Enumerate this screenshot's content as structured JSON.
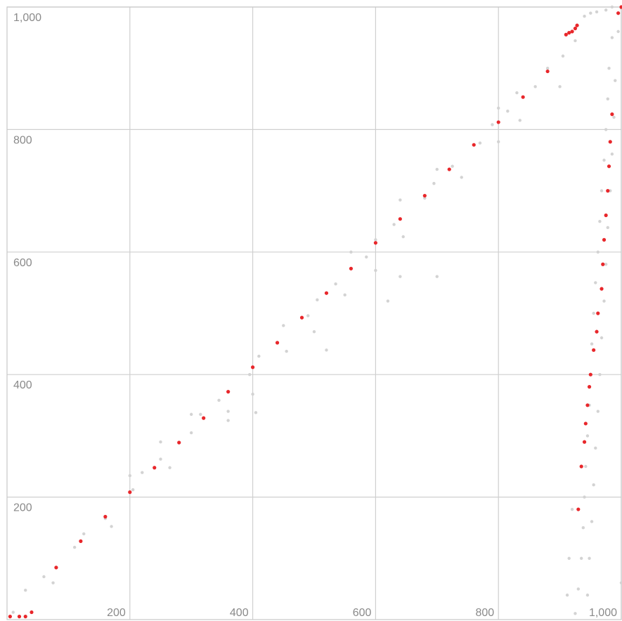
{
  "chart_data": {
    "type": "scatter",
    "title": "",
    "xlabel": "",
    "ylabel": "",
    "xlim": [
      0,
      1000
    ],
    "ylim": [
      0,
      1000
    ],
    "grid": true,
    "x_ticks": [
      {
        "value": 200,
        "label": "200"
      },
      {
        "value": 400,
        "label": "400"
      },
      {
        "value": 600,
        "label": "600"
      },
      {
        "value": 800,
        "label": "800"
      },
      {
        "value": 1000,
        "label": "1,000"
      }
    ],
    "y_ticks": [
      {
        "value": 200,
        "label": "200"
      },
      {
        "value": 400,
        "label": "400"
      },
      {
        "value": 600,
        "label": "600"
      },
      {
        "value": 800,
        "label": "800"
      },
      {
        "value": 1000,
        "label": "1,000"
      }
    ],
    "series": [
      {
        "color": "#d3d3d3",
        "values": [
          [
            10,
            12
          ],
          [
            60,
            70
          ],
          [
            110,
            118
          ],
          [
            160,
            165
          ],
          [
            205,
            212
          ],
          [
            250,
            262
          ],
          [
            300,
            305
          ],
          [
            345,
            358
          ],
          [
            395,
            400
          ],
          [
            440,
            452
          ],
          [
            490,
            496
          ],
          [
            535,
            548
          ],
          [
            585,
            592
          ],
          [
            630,
            645
          ],
          [
            680,
            688
          ],
          [
            725,
            740
          ],
          [
            770,
            778
          ],
          [
            815,
            830
          ],
          [
            860,
            870
          ],
          [
            905,
            920
          ],
          [
            30,
            48
          ],
          [
            75,
            60
          ],
          [
            125,
            140
          ],
          [
            170,
            152
          ],
          [
            220,
            240
          ],
          [
            265,
            248
          ],
          [
            315,
            335
          ],
          [
            360,
            340
          ],
          [
            410,
            430
          ],
          [
            455,
            438
          ],
          [
            505,
            522
          ],
          [
            550,
            530
          ],
          [
            600,
            620
          ],
          [
            645,
            625
          ],
          [
            695,
            712
          ],
          [
            740,
            722
          ],
          [
            790,
            808
          ],
          [
            835,
            815
          ],
          [
            880,
            900
          ],
          [
            925,
            945
          ],
          [
            200,
            235
          ],
          [
            300,
            335
          ],
          [
            400,
            368
          ],
          [
            500,
            470
          ],
          [
            600,
            570
          ],
          [
            700,
            735
          ],
          [
            800,
            835
          ],
          [
            900,
            870
          ],
          [
            360,
            325
          ],
          [
            560,
            600
          ],
          [
            640,
            560
          ],
          [
            620,
            520
          ],
          [
            700,
            560
          ],
          [
            520,
            440
          ],
          [
            405,
            338
          ],
          [
            640,
            685
          ],
          [
            800,
            780
          ],
          [
            830,
            860
          ],
          [
            450,
            480
          ],
          [
            250,
            290
          ],
          [
            940,
            985
          ],
          [
            960,
            992
          ],
          [
            975,
            995
          ],
          [
            950,
            990
          ],
          [
            1000,
            998
          ],
          [
            985,
            1000
          ],
          [
            985,
            950
          ],
          [
            980,
            900
          ],
          [
            978,
            850
          ],
          [
            975,
            800
          ],
          [
            972,
            750
          ],
          [
            968,
            700
          ],
          [
            965,
            650
          ],
          [
            962,
            600
          ],
          [
            958,
            550
          ],
          [
            955,
            500
          ],
          [
            952,
            450
          ],
          [
            950,
            400
          ],
          [
            948,
            350
          ],
          [
            945,
            300
          ],
          [
            942,
            250
          ],
          [
            940,
            200
          ],
          [
            938,
            150
          ],
          [
            935,
            100
          ],
          [
            930,
            50
          ],
          [
            925,
            10
          ],
          [
            995,
            960
          ],
          [
            990,
            880
          ],
          [
            988,
            820
          ],
          [
            985,
            760
          ],
          [
            982,
            700
          ],
          [
            978,
            640
          ],
          [
            975,
            580
          ],
          [
            972,
            520
          ],
          [
            968,
            460
          ],
          [
            965,
            400
          ],
          [
            962,
            340
          ],
          [
            958,
            280
          ],
          [
            955,
            220
          ],
          [
            952,
            160
          ],
          [
            948,
            100
          ],
          [
            945,
            40
          ],
          [
            920,
            180
          ],
          [
            915,
            100
          ],
          [
            912,
            40
          ],
          [
            1000,
            60
          ]
        ]
      },
      {
        "color": "#e8272b",
        "values": [
          [
            5,
            5
          ],
          [
            20,
            5
          ],
          [
            30,
            5
          ],
          [
            40,
            12
          ],
          [
            80,
            85
          ],
          [
            120,
            128
          ],
          [
            160,
            168
          ],
          [
            200,
            208
          ],
          [
            240,
            248
          ],
          [
            280,
            289
          ],
          [
            320,
            329
          ],
          [
            360,
            372
          ],
          [
            400,
            412
          ],
          [
            440,
            452
          ],
          [
            480,
            493
          ],
          [
            520,
            533
          ],
          [
            560,
            573
          ],
          [
            600,
            615
          ],
          [
            640,
            654
          ],
          [
            680,
            692
          ],
          [
            720,
            735
          ],
          [
            760,
            775
          ],
          [
            800,
            812
          ],
          [
            840,
            853
          ],
          [
            880,
            895
          ],
          [
            910,
            955
          ],
          [
            915,
            958
          ],
          [
            920,
            960
          ],
          [
            925,
            965
          ],
          [
            928,
            970
          ],
          [
            995,
            990
          ],
          [
            1000,
            1000
          ],
          [
            985,
            825
          ],
          [
            982,
            780
          ],
          [
            980,
            740
          ],
          [
            978,
            700
          ],
          [
            975,
            660
          ],
          [
            972,
            620
          ],
          [
            970,
            580
          ],
          [
            968,
            540
          ],
          [
            962,
            500
          ],
          [
            960,
            470
          ],
          [
            955,
            440
          ],
          [
            950,
            400
          ],
          [
            948,
            380
          ],
          [
            945,
            350
          ],
          [
            942,
            320
          ],
          [
            940,
            290
          ],
          [
            935,
            250
          ],
          [
            930,
            180
          ]
        ]
      }
    ]
  }
}
